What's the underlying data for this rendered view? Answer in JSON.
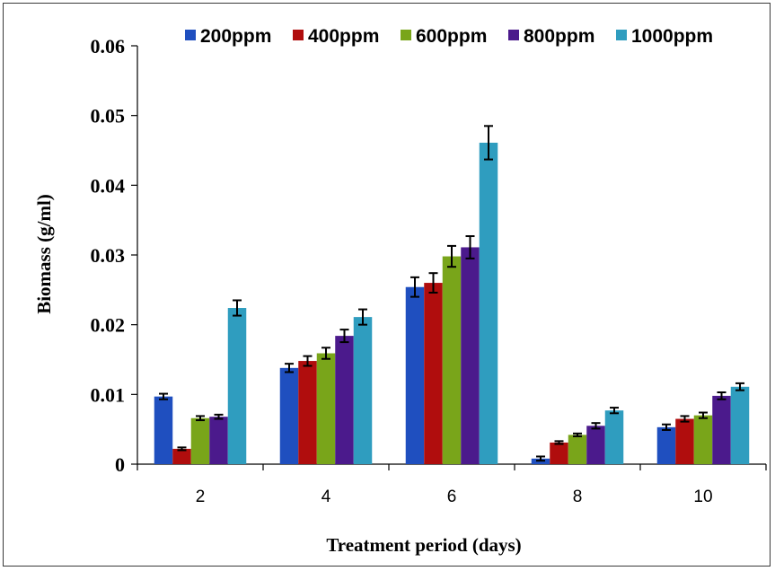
{
  "chart_data": {
    "type": "bar",
    "title": "",
    "xlabel": "Treatment period (days)",
    "ylabel": "Biomass (g/ml)",
    "ylim": [
      0,
      0.06
    ],
    "yticks": [
      "0",
      "0.01",
      "0.02",
      "0.03",
      "0.04",
      "0.05",
      "0.06"
    ],
    "categories": [
      "2",
      "4",
      "6",
      "8",
      "10"
    ],
    "legend_position": "top",
    "grid": false,
    "series": [
      {
        "name": "200ppm",
        "color": "#1f4fbf",
        "values": [
          0.0097,
          0.0138,
          0.0254,
          0.0008,
          0.0053
        ],
        "errors": [
          0.0004,
          0.0006,
          0.0014,
          0.0003,
          0.0004
        ]
      },
      {
        "name": "400ppm",
        "color": "#b00d0d",
        "values": [
          0.0022,
          0.0148,
          0.026,
          0.0031,
          0.0065
        ],
        "errors": [
          0.0002,
          0.0007,
          0.0014,
          0.0002,
          0.0004
        ]
      },
      {
        "name": "600ppm",
        "color": "#79a51a",
        "values": [
          0.0066,
          0.0159,
          0.0298,
          0.0042,
          0.007
        ],
        "errors": [
          0.0003,
          0.0008,
          0.0015,
          0.0002,
          0.0004
        ]
      },
      {
        "name": "800ppm",
        "color": "#4b1a8c",
        "values": [
          0.0068,
          0.0184,
          0.0311,
          0.0055,
          0.0098
        ],
        "errors": [
          0.0003,
          0.0009,
          0.0016,
          0.0004,
          0.0005
        ]
      },
      {
        "name": "1000ppm",
        "color": "#2f9dbf",
        "values": [
          0.0224,
          0.0211,
          0.0461,
          0.0077,
          0.0111
        ],
        "errors": [
          0.0011,
          0.0011,
          0.0024,
          0.0004,
          0.0005
        ]
      }
    ]
  }
}
